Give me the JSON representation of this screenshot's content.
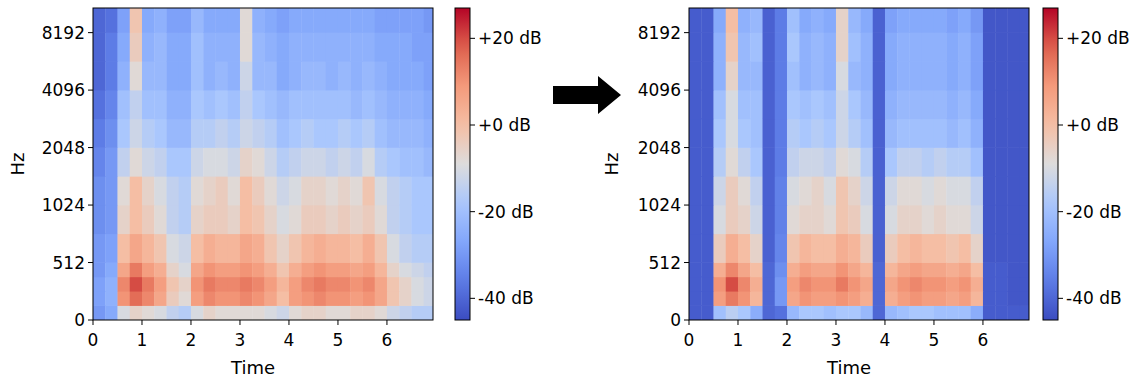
{
  "chart_data": [
    {
      "type": "heatmap",
      "xlabel": "Time",
      "ylabel": "Hz",
      "log": "y",
      "xlim": [
        0,
        6.94
      ],
      "xticks": [
        0,
        1,
        2,
        3,
        4,
        5,
        6
      ],
      "ylim": [
        0,
        11025
      ],
      "yticks": [
        0,
        512,
        1024,
        2048,
        4096,
        8192
      ],
      "zlim": [
        -45,
        27
      ],
      "zticks": [
        {
          "value": 20,
          "label": "+20 dB"
        },
        {
          "value": 0,
          "label": "+0 dB"
        },
        {
          "value": -20,
          "label": "-20 dB"
        },
        {
          "value": -40,
          "label": "-40 dB"
        }
      ],
      "x_bins": [
        0,
        0.25,
        0.5,
        0.75,
        1,
        1.25,
        1.5,
        1.75,
        2,
        2.25,
        2.5,
        2.75,
        3,
        3.25,
        3.5,
        3.75,
        4,
        4.25,
        4.5,
        4.75,
        5,
        5.25,
        5.5,
        5.75,
        6,
        6.25,
        6.5,
        6.75,
        7
      ],
      "y_bins": [
        0,
        128,
        256,
        384,
        512,
        768,
        1024,
        1448,
        2048,
        2896,
        4096,
        5793,
        8192,
        11025
      ],
      "cells": [
        [
          -30,
          -26,
          -10,
          -6,
          -8,
          -10,
          -14,
          -16,
          -10,
          -6,
          -8,
          -8,
          -8,
          -8,
          -10,
          -12,
          -8,
          -6,
          -6,
          -8,
          -8,
          -6,
          -6,
          -8,
          -12,
          -14,
          -16,
          -16
        ],
        [
          -28,
          -24,
          10,
          16,
          12,
          6,
          -4,
          -8,
          8,
          12,
          10,
          10,
          12,
          10,
          6,
          0,
          8,
          10,
          12,
          10,
          10,
          8,
          10,
          6,
          -2,
          -6,
          -10,
          -12
        ],
        [
          -28,
          -24,
          12,
          20,
          14,
          8,
          -2,
          -6,
          10,
          14,
          12,
          12,
          14,
          12,
          8,
          2,
          8,
          12,
          14,
          12,
          12,
          10,
          12,
          6,
          -2,
          -6,
          -10,
          -12
        ],
        [
          -30,
          -26,
          6,
          14,
          8,
          4,
          -6,
          -10,
          6,
          10,
          8,
          8,
          10,
          8,
          4,
          -2,
          4,
          8,
          10,
          8,
          8,
          6,
          8,
          2,
          -6,
          -10,
          -12,
          -14
        ],
        [
          -30,
          -28,
          0,
          6,
          2,
          -2,
          -10,
          -12,
          0,
          4,
          2,
          2,
          6,
          4,
          -2,
          -6,
          -2,
          2,
          4,
          2,
          2,
          0,
          4,
          -2,
          -10,
          -14,
          -16,
          -16
        ],
        [
          -32,
          -30,
          -6,
          0,
          -4,
          -8,
          -14,
          -16,
          -6,
          -4,
          -4,
          -6,
          0,
          -2,
          -6,
          -10,
          -8,
          -4,
          -4,
          -6,
          -4,
          -6,
          -4,
          -8,
          -14,
          -16,
          -18,
          -18
        ],
        [
          -32,
          -30,
          -8,
          0,
          -6,
          -10,
          -14,
          -16,
          -8,
          -6,
          -4,
          -8,
          0,
          -4,
          -8,
          -12,
          -10,
          -6,
          -6,
          -8,
          -6,
          -8,
          -2,
          -10,
          -14,
          -16,
          -18,
          -18
        ],
        [
          -34,
          -30,
          -14,
          -8,
          -12,
          -14,
          -18,
          -18,
          -12,
          -10,
          -10,
          -12,
          -6,
          -8,
          -12,
          -16,
          -14,
          -12,
          -12,
          -14,
          -12,
          -14,
          -10,
          -16,
          -18,
          -20,
          -20,
          -22
        ],
        [
          -36,
          -32,
          -18,
          -12,
          -16,
          -18,
          -22,
          -22,
          -16,
          -16,
          -14,
          -16,
          -12,
          -14,
          -16,
          -20,
          -18,
          -16,
          -18,
          -18,
          -16,
          -18,
          -16,
          -20,
          -22,
          -22,
          -22,
          -24
        ],
        [
          -38,
          -34,
          -20,
          -14,
          -20,
          -20,
          -24,
          -24,
          -18,
          -20,
          -18,
          -20,
          -14,
          -18,
          -20,
          -22,
          -20,
          -20,
          -20,
          -20,
          -20,
          -22,
          -20,
          -22,
          -24,
          -24,
          -24,
          -26
        ],
        [
          -40,
          -36,
          -24,
          -8,
          -22,
          -22,
          -26,
          -26,
          -20,
          -24,
          -22,
          -24,
          -12,
          -22,
          -22,
          -26,
          -24,
          -22,
          -22,
          -24,
          -22,
          -24,
          -22,
          -24,
          -26,
          -26,
          -26,
          -28
        ],
        [
          -40,
          -36,
          -26,
          -4,
          -24,
          -22,
          -26,
          -26,
          -20,
          -24,
          -24,
          -24,
          -8,
          -22,
          -24,
          -26,
          -24,
          -24,
          -24,
          -24,
          -24,
          -24,
          -24,
          -26,
          -26,
          -26,
          -28,
          -28
        ],
        [
          -40,
          -38,
          -28,
          -2,
          -26,
          -24,
          -28,
          -28,
          -22,
          -26,
          -26,
          -26,
          -8,
          -24,
          -26,
          -28,
          -26,
          -26,
          -26,
          -26,
          -26,
          -26,
          -26,
          -28,
          -28,
          -28,
          -28,
          -30
        ]
      ]
    },
    {
      "type": "heatmap",
      "xlabel": "Time",
      "ylabel": "Hz",
      "log": "y",
      "xlim": [
        0,
        6.94
      ],
      "xticks": [
        0,
        1,
        2,
        3,
        4,
        5,
        6
      ],
      "ylim": [
        0,
        11025
      ],
      "yticks": [
        0,
        512,
        1024,
        2048,
        4096,
        8192
      ],
      "zlim": [
        -45,
        27
      ],
      "zticks": [
        {
          "value": 20,
          "label": "+20 dB"
        },
        {
          "value": 0,
          "label": "+0 dB"
        },
        {
          "value": -20,
          "label": "-20 dB"
        },
        {
          "value": -40,
          "label": "-40 dB"
        }
      ],
      "x_bins": [
        0,
        0.25,
        0.5,
        0.75,
        1,
        1.25,
        1.5,
        1.75,
        2,
        2.25,
        2.5,
        2.75,
        3,
        3.25,
        3.5,
        3.75,
        4,
        4.25,
        4.5,
        4.75,
        5,
        5.25,
        5.5,
        5.75,
        6,
        6.25,
        6.5,
        6.75,
        7
      ],
      "y_bins": [
        0,
        128,
        256,
        384,
        512,
        768,
        1024,
        1448,
        2048,
        2896,
        4096,
        5793,
        8192,
        11025
      ],
      "cells": [
        [
          -42,
          -42,
          -20,
          -15,
          -18,
          -25,
          -40,
          -38,
          -22,
          -18,
          -18,
          -20,
          -18,
          -18,
          -22,
          -40,
          -22,
          -20,
          -18,
          -18,
          -20,
          -20,
          -20,
          -25,
          -42,
          -42,
          -42,
          -42
        ],
        [
          -42,
          -42,
          8,
          14,
          10,
          2,
          -40,
          -30,
          6,
          10,
          8,
          8,
          10,
          8,
          4,
          -40,
          4,
          8,
          10,
          8,
          8,
          6,
          8,
          2,
          -42,
          -42,
          -43,
          -43
        ],
        [
          -42,
          -42,
          10,
          20,
          12,
          4,
          -40,
          -30,
          8,
          12,
          10,
          10,
          14,
          10,
          6,
          -40,
          6,
          10,
          12,
          10,
          10,
          8,
          10,
          4,
          -42,
          -42,
          -43,
          -43
        ],
        [
          -42,
          -42,
          4,
          12,
          6,
          0,
          -40,
          -32,
          4,
          8,
          6,
          6,
          10,
          6,
          2,
          -40,
          2,
          6,
          8,
          6,
          6,
          4,
          6,
          0,
          -42,
          -42,
          -43,
          -43
        ],
        [
          -42,
          -42,
          -4,
          4,
          0,
          -6,
          -41,
          -34,
          -2,
          2,
          0,
          0,
          4,
          2,
          -4,
          -41,
          -4,
          0,
          2,
          0,
          0,
          -2,
          0,
          -6,
          -43,
          -43,
          -43,
          -43
        ],
        [
          -42,
          -42,
          -10,
          -4,
          -6,
          -12,
          -41,
          -35,
          -8,
          -6,
          -6,
          -8,
          -2,
          -4,
          -10,
          -41,
          -10,
          -6,
          -6,
          -8,
          -6,
          -8,
          -8,
          -12,
          -43,
          -43,
          -43,
          -43
        ],
        [
          -42,
          -42,
          -12,
          -4,
          -8,
          -14,
          -41,
          -35,
          -10,
          -8,
          -6,
          -10,
          -2,
          -6,
          -12,
          -41,
          -12,
          -8,
          -8,
          -10,
          -8,
          -10,
          -10,
          -14,
          -43,
          -43,
          -43,
          -43
        ],
        [
          -42,
          -42,
          -16,
          -8,
          -14,
          -18,
          -41,
          -36,
          -14,
          -12,
          -12,
          -14,
          -8,
          -10,
          -16,
          -41,
          -18,
          -14,
          -14,
          -16,
          -14,
          -16,
          -16,
          -20,
          -43,
          -43,
          -43,
          -43
        ],
        [
          -42,
          -42,
          -18,
          -10,
          -18,
          -20,
          -41,
          -36,
          -16,
          -18,
          -16,
          -18,
          -12,
          -16,
          -20,
          -41,
          -22,
          -20,
          -20,
          -20,
          -20,
          -22,
          -20,
          -24,
          -43,
          -43,
          -43,
          -43
        ],
        [
          -42,
          -42,
          -20,
          -10,
          -20,
          -20,
          -41,
          -36,
          -18,
          -20,
          -18,
          -20,
          -12,
          -18,
          -22,
          -41,
          -24,
          -22,
          -22,
          -22,
          -22,
          -24,
          -22,
          -26,
          -43,
          -43,
          -43,
          -43
        ],
        [
          -42,
          -42,
          -24,
          -6,
          -22,
          -22,
          -41,
          -36,
          -20,
          -24,
          -22,
          -24,
          -10,
          -22,
          -24,
          -41,
          -26,
          -24,
          -24,
          -24,
          -24,
          -26,
          -24,
          -28,
          -43,
          -43,
          -43,
          -43
        ],
        [
          -42,
          -42,
          -24,
          -2,
          -22,
          -20,
          -41,
          -36,
          -18,
          -24,
          -22,
          -24,
          -6,
          -20,
          -24,
          -41,
          -26,
          -24,
          -24,
          -24,
          -24,
          -26,
          -24,
          -28,
          -43,
          -43,
          -43,
          -43
        ],
        [
          -42,
          -42,
          -26,
          0,
          -24,
          -22,
          -41,
          -36,
          -20,
          -26,
          -24,
          -26,
          -6,
          -22,
          -26,
          -41,
          -28,
          -26,
          -26,
          -26,
          -26,
          -28,
          -26,
          -30,
          -43,
          -43,
          -43,
          -43
        ]
      ]
    }
  ]
}
